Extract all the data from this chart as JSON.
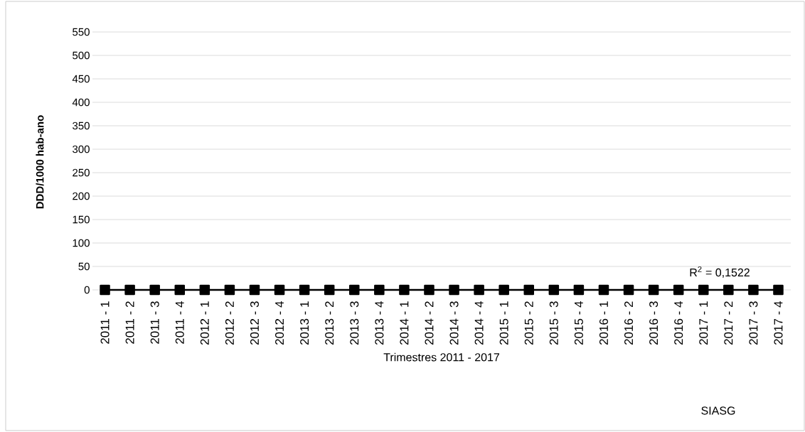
{
  "chart_data": {
    "type": "line",
    "ylabel": "DDD/1000 hab-ano",
    "xlabel": "Trimestres 2011 - 2017",
    "categories": [
      "2011 - 1",
      "2011 - 2",
      "2011 - 3",
      "2011 - 4",
      "2012 - 1",
      "2012 - 2",
      "2012 - 3",
      "2012 - 4",
      "2013 - 1",
      "2013 - 2",
      "2013 - 3",
      "2013 - 4",
      "2014 - 1",
      "2014 - 2",
      "2014 - 3",
      "2014 - 4",
      "2015 - 1",
      "2015 - 2",
      "2015 - 3",
      "2015 - 4",
      "2016 - 1",
      "2016 - 2",
      "2016 - 3",
      "2016 - 4",
      "2017 - 1",
      "2017 - 2",
      "2017 - 3",
      "2017 - 4"
    ],
    "series": [
      {
        "color": "#000000",
        "values": [
          0,
          0,
          0,
          0,
          0,
          0,
          0,
          0,
          0,
          0,
          0,
          0,
          0,
          0,
          0,
          0,
          0,
          0,
          0,
          0,
          0,
          0,
          0,
          0,
          0,
          0,
          0,
          0
        ]
      }
    ],
    "ylim": [
      0,
      550
    ],
    "yticks": [
      0,
      50,
      100,
      150,
      200,
      250,
      300,
      350,
      400,
      450,
      500,
      550
    ],
    "grid": "y",
    "marker": "square",
    "line_style": "solid",
    "annotations": [
      "R$^{2}$ = 0,1522",
      "SIASG"
    ]
  }
}
